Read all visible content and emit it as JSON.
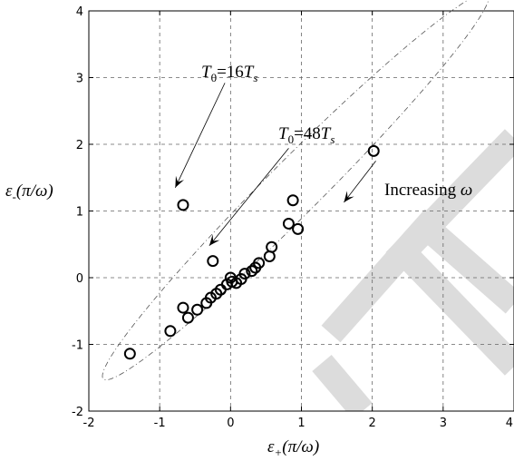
{
  "chart_data": {
    "type": "scatter",
    "title": "",
    "xlabel": {
      "main": "ε",
      "sub": "+",
      "rest": "(π/ω)"
    },
    "ylabel": {
      "main": "ε",
      "sub": "-",
      "rest": "(π/ω)"
    },
    "xlim": [
      -2,
      4
    ],
    "ylim": [
      -2,
      4
    ],
    "xticks": [
      -2,
      -1,
      0,
      1,
      2,
      3,
      4
    ],
    "yticks": [
      -2,
      -1,
      0,
      1,
      2,
      3,
      4
    ],
    "xtick_labels": [
      "-2",
      "-1",
      "0",
      "1",
      "2",
      "3",
      "4"
    ],
    "ytick_labels": [
      "-2",
      "-1",
      "0",
      "1",
      "2",
      "3",
      "4"
    ],
    "grid": true,
    "marker": "circle",
    "points": [
      [
        -1.42,
        -1.14
      ],
      [
        -0.85,
        -0.8
      ],
      [
        -0.67,
        -0.45
      ],
      [
        -0.6,
        -0.6
      ],
      [
        -0.47,
        -0.48
      ],
      [
        -0.34,
        -0.38
      ],
      [
        -0.28,
        -0.3
      ],
      [
        -0.2,
        -0.24
      ],
      [
        -0.14,
        -0.18
      ],
      [
        -0.05,
        -0.1
      ],
      [
        0.02,
        -0.06
      ],
      [
        0.08,
        -0.08
      ],
      [
        0.15,
        -0.02
      ],
      [
        0.2,
        0.06
      ],
      [
        0.3,
        0.1
      ],
      [
        0.35,
        0.15
      ],
      [
        0.4,
        0.22
      ],
      [
        0.55,
        0.32
      ],
      [
        0.58,
        0.46
      ],
      [
        0.82,
        0.81
      ],
      [
        0.95,
        0.73
      ],
      [
        0.88,
        1.16
      ],
      [
        -0.25,
        0.25
      ],
      [
        -0.67,
        1.09
      ],
      [
        0.0,
        0.0
      ],
      [
        2.02,
        1.9
      ]
    ],
    "ellipse": {
      "center": [
        0.92,
        1.37
      ],
      "semi_major": 3.84,
      "semi_minor": 0.38,
      "angle_deg": 45
    },
    "annotations": [
      {
        "id": "t16",
        "base": "T",
        "base_sub": "0",
        "eq": "=16",
        "var": "T",
        "var_sub": "s",
        "arrow_from": [
          -0.08,
          2.92
        ],
        "arrow_to": [
          -0.78,
          1.35
        ]
      },
      {
        "id": "t48",
        "base": "T",
        "base_sub": "0",
        "eq": "=48",
        "var": "T",
        "var_sub": "s",
        "arrow_from": [
          0.82,
          1.94
        ],
        "arrow_to": [
          -0.3,
          0.48
        ]
      },
      {
        "id": "incr",
        "text": "Increasing",
        "var": "ω",
        "arrow_from": [
          2.05,
          1.75
        ],
        "arrow_to": [
          1.6,
          1.13
        ]
      }
    ],
    "watermark_color": "#dcdcdc"
  }
}
